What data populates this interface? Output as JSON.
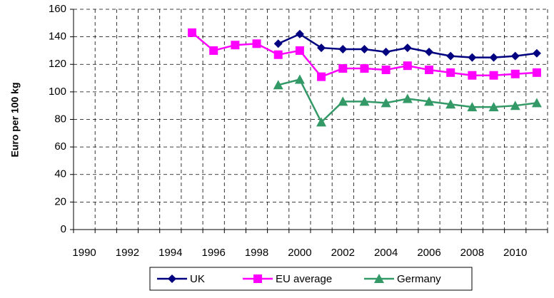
{
  "chart_data": {
    "type": "line",
    "y_axis_label": "Euro per 100 kg",
    "categories": [
      "1990",
      null,
      "1992",
      null,
      "1994",
      null,
      "1996",
      null,
      "1998",
      null,
      "2000",
      null,
      "2002",
      null,
      "2004",
      null,
      "2006",
      null,
      "2008",
      null,
      "2010",
      null
    ],
    "series": [
      {
        "name": "UK",
        "color": "#000080",
        "marker": "diamond",
        "values": [
          null,
          null,
          null,
          null,
          null,
          null,
          null,
          null,
          null,
          135,
          142,
          132,
          131,
          131,
          129,
          132,
          129,
          126,
          125,
          125,
          126,
          128
        ]
      },
      {
        "name": "EU average",
        "color": "#ff00ff",
        "marker": "square",
        "values": [
          null,
          null,
          null,
          null,
          null,
          143,
          130,
          134,
          135,
          127,
          130,
          111,
          117,
          117,
          116,
          119,
          116,
          114,
          112,
          112,
          113,
          114
        ]
      },
      {
        "name": "Germany",
        "color": "#339966",
        "marker": "triangle",
        "values": [
          null,
          null,
          null,
          null,
          null,
          null,
          null,
          null,
          null,
          105,
          109,
          78,
          93,
          93,
          92,
          95,
          93,
          91,
          89,
          89,
          90,
          92
        ]
      }
    ],
    "ylim": [
      0,
      160
    ],
    "yticks": [
      0,
      20,
      40,
      60,
      80,
      100,
      120,
      140,
      160
    ],
    "grid": true,
    "legend_position": "bottom"
  }
}
